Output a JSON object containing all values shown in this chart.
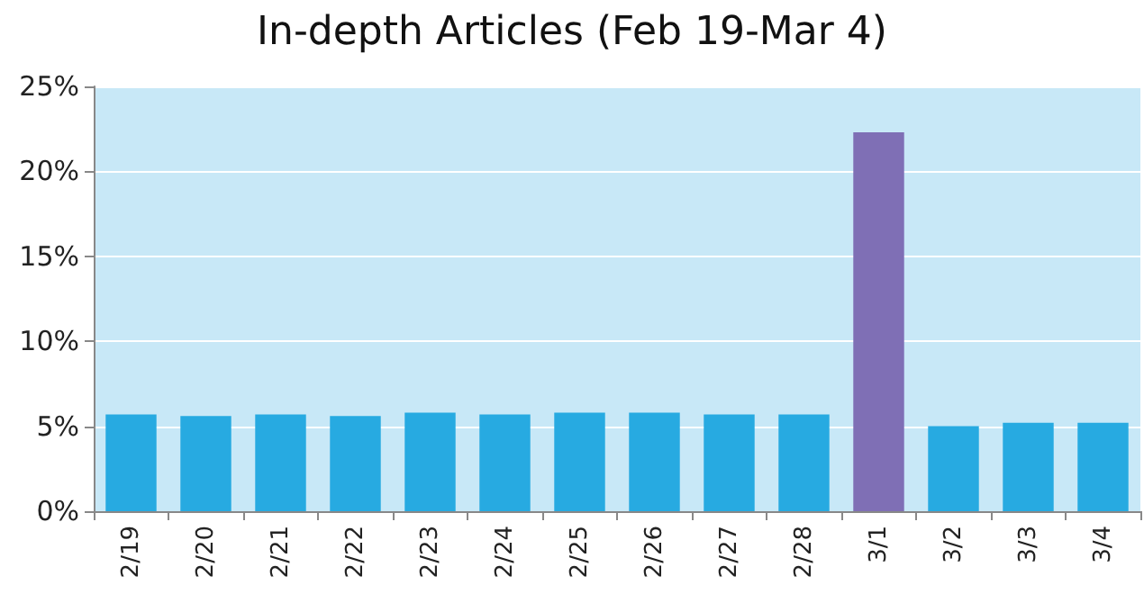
{
  "chart_data": {
    "type": "bar",
    "title": "In-depth Articles (Feb 19-Mar 4)",
    "categories": [
      "2/19",
      "2/20",
      "2/21",
      "2/22",
      "2/23",
      "2/24",
      "2/25",
      "2/26",
      "2/27",
      "2/28",
      "3/1",
      "3/2",
      "3/3",
      "3/4"
    ],
    "values": [
      5.7,
      5.6,
      5.7,
      5.6,
      5.8,
      5.7,
      5.8,
      5.8,
      5.7,
      5.7,
      22.3,
      5.0,
      5.2,
      5.2
    ],
    "colors": [
      "#27aae1",
      "#27aae1",
      "#27aae1",
      "#27aae1",
      "#27aae1",
      "#27aae1",
      "#27aae1",
      "#27aae1",
      "#27aae1",
      "#27aae1",
      "#7f6fb5",
      "#27aae1",
      "#27aae1",
      "#27aae1"
    ],
    "ylim": [
      0,
      25
    ],
    "yticks": [
      {
        "value": 0,
        "label": "0%"
      },
      {
        "value": 5,
        "label": "5%"
      },
      {
        "value": 10,
        "label": "10%"
      },
      {
        "value": 15,
        "label": "15%"
      },
      {
        "value": 20,
        "label": "20%"
      },
      {
        "value": 25,
        "label": "25%"
      }
    ],
    "grid": "y"
  }
}
